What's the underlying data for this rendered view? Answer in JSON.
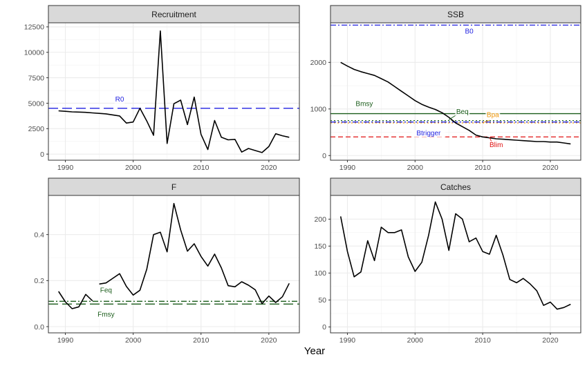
{
  "global": {
    "xlabel": "Year",
    "x_ticks": [
      1990,
      2000,
      2010,
      2020
    ],
    "xlim": [
      1987.5,
      2024.5
    ],
    "colors": {
      "line": "#000000",
      "blue": "#1f1fe0",
      "green": "#1a5c1a",
      "orange": "#f0960a",
      "red": "#e01010",
      "strip": "#d9d9d9",
      "grid": "#ebebeb"
    }
  },
  "chart_data": [
    {
      "type": "line",
      "title": "Recruitment",
      "ylim": [
        -600,
        12900
      ],
      "y_ticks": [
        0,
        2500,
        5000,
        7500,
        10000,
        12500
      ],
      "y_tick_labels": [
        "0",
        "2500",
        "5000",
        "7500",
        "10000",
        "12500"
      ],
      "series": [
        {
          "segments": [
            {
              "x": [
                1989,
                1990,
                1991,
                1992,
                1993,
                1994,
                1995,
                1996,
                1997,
                1998,
                1999,
                2000,
                2001,
                2002,
                2003,
                2004,
                2005,
                2006,
                2007,
                2008,
                2009,
                2010,
                2011,
                2012,
                2013,
                2014,
                2015,
                2016,
                2017,
                2018,
                2019,
                2020,
                2021,
                2022,
                2023
              ],
              "y": [
                4250,
                4200,
                4150,
                4130,
                4100,
                4050,
                4000,
                3950,
                3850,
                3750,
                3050,
                3150,
                4500,
                3250,
                1850,
                12100,
                1050,
                4950,
                5300,
                2900,
                5600,
                1950,
                450,
                3300,
                1650,
                1400,
                1450,
                200,
                550,
                350,
                150,
                750,
                2000,
                1800,
                1650
              ]
            }
          ]
        }
      ],
      "references": [
        {
          "label": "R0",
          "value": 4500,
          "color": "#1f1fe0",
          "dash": "long",
          "label_x": 1998,
          "label_y": 5150
        }
      ]
    },
    {
      "type": "line",
      "title": "SSB",
      "ylim": [
        -100,
        2850
      ],
      "y_ticks": [
        0,
        1000,
        2000
      ],
      "y_tick_labels": [
        "0",
        "1000",
        "2000"
      ],
      "series": [
        {
          "segments": [
            {
              "x": [
                1989,
                1990,
                1991,
                1992,
                1993,
                1994,
                1995,
                1996,
                1997,
                1998,
                1999,
                2000,
                2001,
                2002,
                2003,
                2004,
                2005,
                2006,
                2007,
                2008,
                2009,
                2010,
                2011,
                2012,
                2013,
                2014,
                2015,
                2016,
                2017,
                2018,
                2019,
                2020,
                2021,
                2022,
                2023
              ],
              "y": [
                2000,
                1920,
                1850,
                1800,
                1760,
                1720,
                1650,
                1580,
                1480,
                1380,
                1280,
                1180,
                1100,
                1040,
                990,
                920,
                820,
                700,
                620,
                540,
                440,
                400,
                380,
                360,
                350,
                340,
                330,
                320,
                310,
                300,
                300,
                290,
                290,
                270,
                250
              ]
            }
          ]
        }
      ],
      "references": [
        {
          "label": "B0",
          "value": 2800,
          "color": "#1f1fe0",
          "dash": "dashdot",
          "label_x": 2008,
          "label_y": 2620
        },
        {
          "label": "Bmsy",
          "value": 900,
          "color": "#1a5c1a",
          "dash": "solid",
          "label_x": 1992.5,
          "label_y": 1060
        },
        {
          "label": "Beq",
          "value": 750,
          "color": "#1a5c1a",
          "dash": "dotted",
          "label_x": 2007,
          "label_y": 890,
          "leader": [
            2006.2,
            880,
            2005,
            770
          ]
        },
        {
          "label": "Bpa",
          "value": 700,
          "color": "#f0960a",
          "dash": "dotted",
          "label_x": 2011.5,
          "label_y": 830,
          "leader": [
            2011,
            760,
            2010,
            705
          ]
        },
        {
          "label": "Btrigger",
          "value": 720,
          "color": "#1f1fe0",
          "dash": "dashdot",
          "label_x": 2002,
          "label_y": 430
        },
        {
          "label": "Blim",
          "value": 400,
          "color": "#e01010",
          "dash": "dashed",
          "label_x": 2012,
          "label_y": 180,
          "leader": [
            2011.5,
            240,
            2011,
            390
          ]
        }
      ]
    },
    {
      "type": "line",
      "title": "F",
      "ylim": [
        -0.027,
        0.57
      ],
      "y_ticks": [
        0,
        0.2,
        0.4
      ],
      "y_tick_labels": [
        "0.0",
        "0.2",
        "0.4"
      ],
      "series": [
        {
          "segments": [
            {
              "x": [
                1989,
                1990,
                1991,
                1992,
                1993,
                1994
              ],
              "y": [
                0.153,
                0.108,
                0.078,
                0.086,
                0.14,
                0.112
              ]
            },
            {
              "x": [
                1995,
                1996,
                1997,
                1998,
                1999,
                2000,
                2001,
                2002,
                2003,
                2004,
                2005,
                2006,
                2007,
                2008,
                2009,
                2010,
                2011,
                2012,
                2013,
                2014,
                2015,
                2016,
                2017,
                2018,
                2019,
                2020,
                2021,
                2022,
                2023
              ],
              "y": [
                0.185,
                0.19,
                0.21,
                0.23,
                0.175,
                0.137,
                0.158,
                0.25,
                0.4,
                0.41,
                0.325,
                0.535,
                0.42,
                0.328,
                0.36,
                0.305,
                0.263,
                0.315,
                0.255,
                0.178,
                0.173,
                0.195,
                0.18,
                0.16,
                0.1,
                0.133,
                0.105,
                0.13,
                0.188
              ]
            }
          ]
        }
      ],
      "references": [
        {
          "label": "Feq",
          "value": 0.11,
          "color": "#1a5c1a",
          "dash": "dashdot",
          "label_x": 1996,
          "label_y": 0.148
        },
        {
          "label": "Fmsy",
          "value": 0.098,
          "color": "#1a5c1a",
          "dash": "long",
          "label_x": 1996,
          "label_y": 0.043
        }
      ]
    },
    {
      "type": "line",
      "title": "Catches",
      "ylim": [
        -11,
        244
      ],
      "y_ticks": [
        0,
        50,
        100,
        150,
        200
      ],
      "y_tick_labels": [
        "0",
        "50",
        "100",
        "150",
        "200"
      ],
      "series": [
        {
          "segments": [
            {
              "x": [
                1989,
                1990,
                1991,
                1992,
                1993,
                1994,
                1995,
                1996,
                1997,
                1998,
                1999,
                2000,
                2001,
                2002,
                2003,
                2004,
                2005,
                2006,
                2007,
                2008,
                2009,
                2010,
                2011,
                2012,
                2013,
                2014,
                2015,
                2016,
                2017,
                2018,
                2019,
                2020,
                2021,
                2022,
                2023
              ],
              "y": [
                205,
                140,
                93,
                102,
                160,
                123,
                185,
                175,
                175,
                180,
                130,
                103,
                120,
                170,
                232,
                200,
                142,
                210,
                200,
                158,
                165,
                140,
                135,
                170,
                133,
                88,
                82,
                90,
                80,
                67,
                40,
                46,
                33,
                36,
                42
              ]
            }
          ]
        }
      ],
      "references": []
    }
  ]
}
